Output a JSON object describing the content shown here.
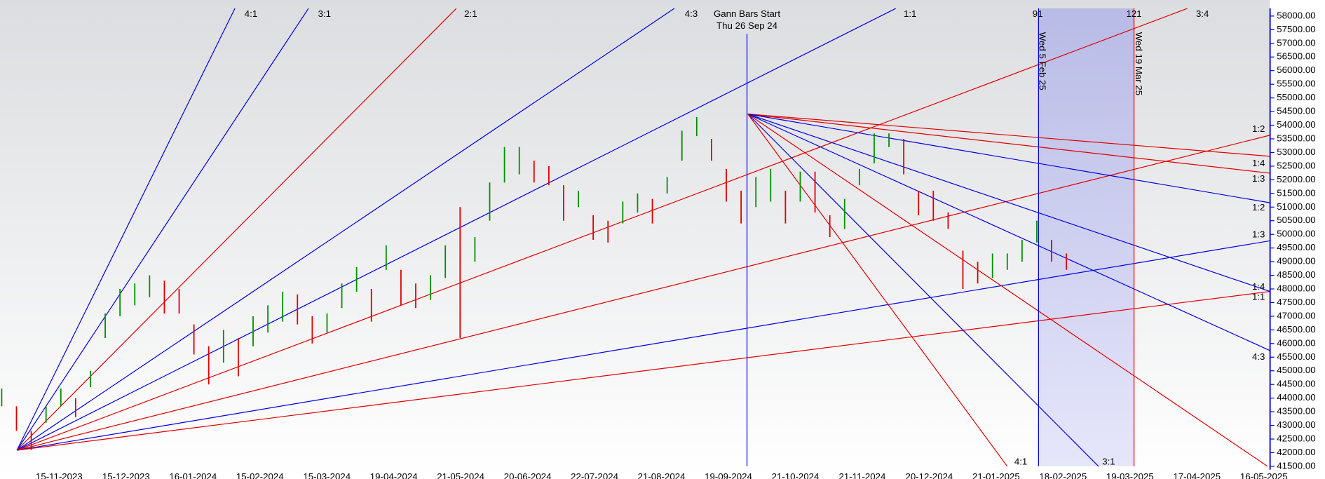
{
  "chart_data": {
    "type": "ohlc",
    "up_color": "#009000",
    "down_color": "#e00000",
    "high": [
      44350,
      43700,
      42800,
      43700,
      44350,
      44000,
      45000,
      47100,
      48000,
      48200,
      48500,
      48300,
      48000,
      46700,
      45900,
      46500,
      46200,
      47000,
      47400,
      47900,
      47800,
      47000,
      47100,
      48200,
      48800,
      48000,
      49600,
      48700,
      48200,
      48500,
      49600,
      51000,
      49900,
      51900,
      53200,
      53200,
      52700,
      52500,
      51800,
      51600,
      50700,
      50500,
      51200,
      51500,
      51300,
      52100,
      53800,
      54300,
      53500,
      52400,
      51600,
      52100,
      52400,
      51600,
      52300,
      52300,
      50700,
      51300,
      52400,
      53700,
      53700,
      53500,
      51600,
      51600,
      50800,
      49400,
      49000,
      49300,
      49300,
      49800,
      50500,
      49800,
      49300
    ],
    "low": [
      43700,
      42800,
      42100,
      43100,
      43700,
      43300,
      44400,
      46200,
      47000,
      47400,
      47700,
      47100,
      47100,
      45600,
      44500,
      45300,
      44800,
      45900,
      46400,
      46800,
      46700,
      46000,
      46400,
      47300,
      47900,
      46800,
      48700,
      47400,
      47300,
      47600,
      48400,
      46200,
      49000,
      50500,
      51900,
      52200,
      51900,
      51800,
      50500,
      51000,
      49800,
      49700,
      50400,
      50800,
      50400,
      51500,
      52700,
      53600,
      52700,
      51200,
      50400,
      51000,
      51200,
      50400,
      51200,
      50800,
      49900,
      50200,
      51800,
      52600,
      53200,
      52200,
      50700,
      50500,
      50200,
      48000,
      48200,
      48400,
      48700,
      49000,
      49700,
      49000,
      48700
    ],
    "ylim": [
      41500,
      58000
    ],
    "yticks": [
      {
        "value": 41500,
        "label": "41500.00"
      },
      {
        "value": 42000,
        "label": "42000.00"
      },
      {
        "value": 42500,
        "label": "42500.00"
      },
      {
        "value": 43000,
        "label": "43000.00"
      },
      {
        "value": 43500,
        "label": "43500.00"
      },
      {
        "value": 44000,
        "label": "44000.00"
      },
      {
        "value": 44500,
        "label": "44500.00"
      },
      {
        "value": 45000,
        "label": "45000.00"
      },
      {
        "value": 45500,
        "label": "45500.00"
      },
      {
        "value": 46000,
        "label": "46000.00"
      },
      {
        "value": 46500,
        "label": "46500.00"
      },
      {
        "value": 47000,
        "label": "47000.00"
      },
      {
        "value": 47500,
        "label": "47500.00"
      },
      {
        "value": 48000,
        "label": "48000.00"
      },
      {
        "value": 48500,
        "label": "48500.00"
      },
      {
        "value": 49000,
        "label": "49000.00"
      },
      {
        "value": 49500,
        "label": "49500.00"
      },
      {
        "value": 50000,
        "label": "50000.00"
      },
      {
        "value": 50500,
        "label": "50500.00"
      },
      {
        "value": 51000,
        "label": "51000.00"
      },
      {
        "value": 51500,
        "label": "51500.00"
      },
      {
        "value": 52000,
        "label": "52000.00"
      },
      {
        "value": 52500,
        "label": "52500.00"
      },
      {
        "value": 53000,
        "label": "53000.00"
      },
      {
        "value": 53500,
        "label": "53500.00"
      },
      {
        "value": 54000,
        "label": "54000.00"
      },
      {
        "value": 54500,
        "label": "54500.00"
      },
      {
        "value": 55000,
        "label": "55000.00"
      },
      {
        "value": 55500,
        "label": "55500.00"
      },
      {
        "value": 56000,
        "label": "56000.00"
      },
      {
        "value": 56500,
        "label": "56500.00"
      },
      {
        "value": 57000,
        "label": "57000.00"
      },
      {
        "value": 57500,
        "label": "57500.00"
      },
      {
        "value": 58000,
        "label": "58000.00"
      }
    ],
    "categories": [
      "15-11-2023",
      "15-12-2023",
      "16-01-2024",
      "15-02-2024",
      "15-03-2024",
      "19-04-2024",
      "21-05-2024",
      "20-06-2024",
      "22-07-2024",
      "21-08-2024",
      "19-09-2024",
      "21-10-2024",
      "21-11-2024",
      "20-12-2024",
      "21-01-2025",
      "18-02-2025",
      "19-03-2025",
      "17-04-2025",
      "16-05-2025"
    ],
    "annotations": {
      "gann_start": "Gann Bars Start",
      "gann_date": "Thu 26 Sep 24",
      "bar_counts": [
        "91",
        "121"
      ],
      "vertical_dates": [
        "Wed 5 Feb 25",
        "Wed 19 Mar 25"
      ],
      "top_ratios": [
        "4:1",
        "3:1",
        "2:1",
        "4:3",
        "1:1",
        "3:4"
      ],
      "right_ratios": [
        "1:2",
        "1:4",
        "1:3",
        "1:2",
        "1:3",
        "1:4",
        "1:1",
        "4:3"
      ],
      "bottom_ratios": [
        "4:1",
        "3:1"
      ]
    }
  }
}
